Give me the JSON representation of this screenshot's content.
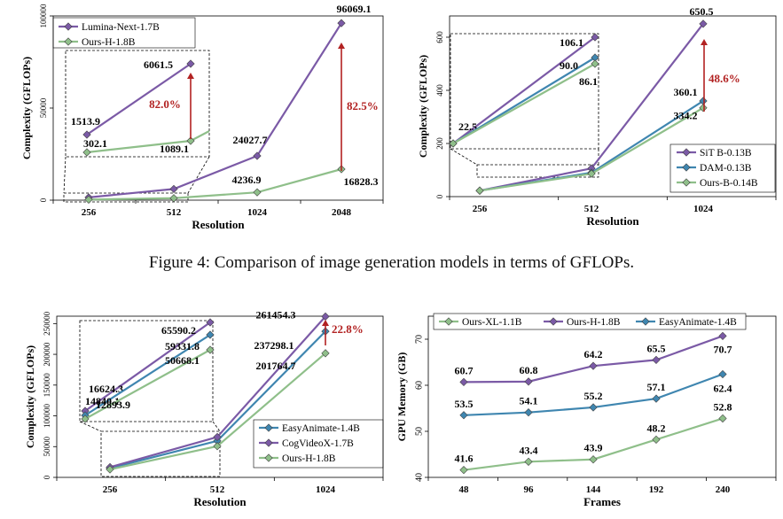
{
  "caption": "Figure 4: Comparison of image generation models in terms of GFLOPs.",
  "colors": {
    "purple": "#7b5aa6",
    "blue": "#3f86b0",
    "green": "#8fbf8a",
    "red": "#b22222",
    "axis": "#000000"
  },
  "chart_data": [
    {
      "type": "line",
      "id": "c1",
      "xlabel": "Resolution",
      "ylabel": "Complexity (GFLOPs)",
      "categories": [
        "256",
        "512",
        "1024",
        "2048"
      ],
      "ylim": [
        0,
        100000
      ],
      "yticks": [
        "0",
        "50000",
        "100000"
      ],
      "legend_position": "top-left",
      "series": [
        {
          "name": "Lumina-Next-1.7B",
          "color": "purple",
          "values": [
            1513.9,
            6061.5,
            24027.7,
            96069.1
          ],
          "labels": [
            "",
            "",
            "24027.7",
            "96069.1"
          ]
        },
        {
          "name": "Ours-H-1.8B",
          "color": "green",
          "values": [
            302.1,
            1089.1,
            4236.9,
            16828.3
          ],
          "labels": [
            "",
            "",
            "4236.9",
            "16828.3"
          ]
        }
      ],
      "inset": {
        "labels": {
          "purple": [
            "1513.9",
            "6061.5"
          ],
          "green": [
            "302.1",
            "1089.1"
          ]
        },
        "annotation": "82.0%"
      },
      "annotation": "82.5%"
    },
    {
      "type": "line",
      "id": "c2",
      "xlabel": "Resolution",
      "ylabel": "Complexity (GFLOPs)",
      "categories": [
        "256",
        "512",
        "1024"
      ],
      "ylim": [
        0,
        680
      ],
      "yticks": [
        "0",
        "200",
        "400",
        "600"
      ],
      "legend_position": "bottom-right",
      "series": [
        {
          "name": "SiT B-0.13B",
          "color": "purple",
          "values": [
            22.5,
            106.1,
            650.5
          ],
          "labels": [
            "",
            "",
            "650.5"
          ]
        },
        {
          "name": "DAM-0.13B",
          "color": "blue",
          "values": [
            22.5,
            90.0,
            360.1
          ],
          "labels": [
            "",
            "",
            "360.1"
          ]
        },
        {
          "name": "Ours-B-0.14B",
          "color": "green",
          "values": [
            22.5,
            86.1,
            334.2
          ],
          "labels": [
            "",
            "",
            "334.2"
          ]
        }
      ],
      "inset": {
        "labels": {
          "purple": [
            "22.5",
            "106.1"
          ],
          "blue": [
            "",
            "90.0"
          ],
          "green": [
            "",
            "86.1"
          ]
        },
        "annotation": ""
      },
      "annotation": "48.6%"
    },
    {
      "type": "line",
      "id": "c3",
      "xlabel": "Resolution",
      "ylabel": "Complexity (GFLOPs)",
      "categories": [
        "256",
        "512",
        "1024"
      ],
      "ylim": [
        0,
        262000
      ],
      "yticks": [
        "0",
        "50000",
        "100000",
        "150000",
        "200000",
        "250000"
      ],
      "legend_position": "bottom-right",
      "series": [
        {
          "name": "EasyAnimate-1.4B",
          "color": "blue",
          "values": [
            14840.1,
            59331.8,
            237298.1
          ],
          "labels": [
            "",
            "",
            "237298.1"
          ]
        },
        {
          "name": "CogVideoX-1.7B",
          "color": "purple",
          "values": [
            16624.3,
            65590.2,
            261454.3
          ],
          "labels": [
            "",
            "",
            "261454.3"
          ]
        },
        {
          "name": "Ours-H-1.8B",
          "color": "green",
          "values": [
            12893.9,
            50668.1,
            201764.7
          ],
          "labels": [
            "",
            "",
            "201764.7"
          ]
        }
      ],
      "inset": {
        "labels": {
          "purple": [
            "16624.3",
            "65590.2"
          ],
          "blue": [
            "14840.1",
            "59331.8"
          ],
          "green": [
            "12893.9",
            "50668.1"
          ]
        },
        "annotation": ""
      },
      "annotation": "22.8%"
    },
    {
      "type": "line",
      "id": "c4",
      "xlabel": "Frames",
      "ylabel": "GPU Memory (GB)",
      "categories": [
        "48",
        "96",
        "144",
        "192",
        "240"
      ],
      "ylim": [
        40,
        75
      ],
      "yticks": [
        "40",
        "50",
        "60",
        "70"
      ],
      "legend_position": "top",
      "series": [
        {
          "name": "Ours-XL-1.1B",
          "color": "green",
          "values": [
            41.6,
            43.4,
            43.9,
            48.2,
            52.8
          ],
          "labels": [
            "41.6",
            "43.4",
            "43.9",
            "48.2",
            "52.8"
          ]
        },
        {
          "name": "Ours-H-1.8B",
          "color": "purple",
          "values": [
            60.7,
            60.8,
            64.2,
            65.5,
            70.7
          ],
          "labels": [
            "60.7",
            "60.8",
            "64.2",
            "65.5",
            "70.7"
          ]
        },
        {
          "name": "EasyAnimate-1.4B",
          "color": "blue",
          "values": [
            53.5,
            54.1,
            55.2,
            57.1,
            62.4
          ],
          "labels": [
            "53.5",
            "54.1",
            "55.2",
            "57.1",
            "62.4"
          ]
        }
      ]
    }
  ]
}
